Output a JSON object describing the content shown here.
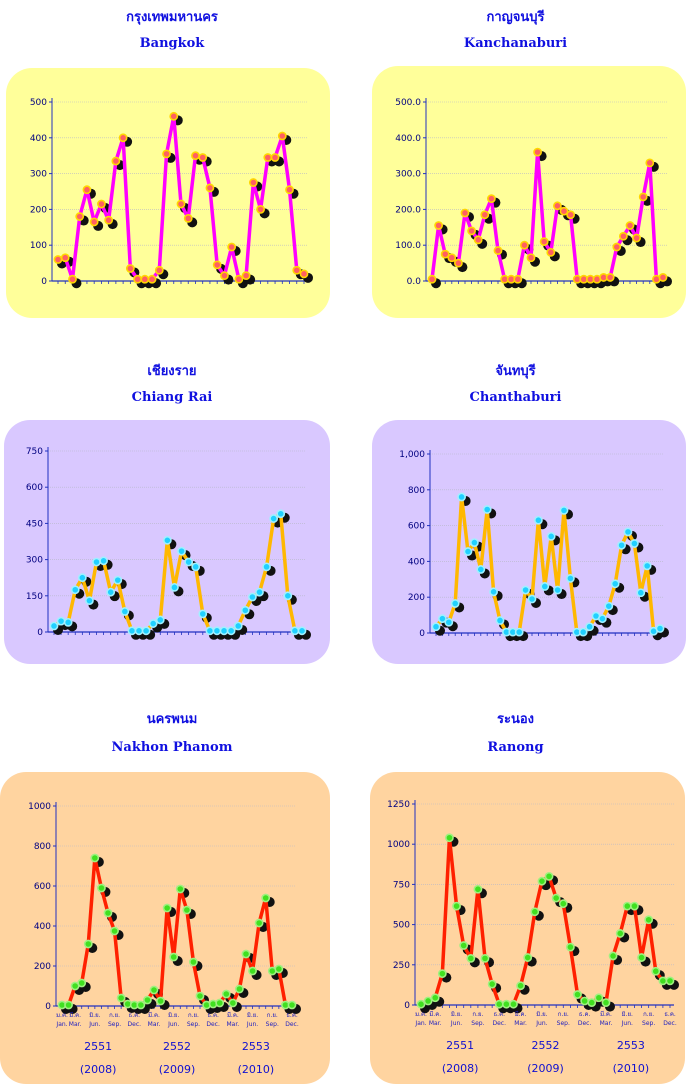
{
  "charts": [
    {
      "title_th": "กรุงเทพมหานคร",
      "title_en": "Bangkok",
      "chart_data": {
        "type": "line",
        "yticks": [
          0,
          100,
          200,
          300,
          400,
          500
        ],
        "ytick_labels": [
          "0",
          "100",
          "200",
          "300",
          "400",
          "500"
        ],
        "ylim": [
          0,
          500
        ],
        "values": [
          60,
          65,
          5,
          180,
          255,
          165,
          215,
          170,
          335,
          400,
          35,
          5,
          5,
          5,
          30,
          355,
          460,
          215,
          175,
          350,
          345,
          260,
          45,
          15,
          95,
          5,
          15,
          275,
          200,
          345,
          345,
          405,
          255,
          30,
          20
        ],
        "line_color": "#ff00ff",
        "marker_fill": "#ff6060",
        "marker_edge": "#ffd700",
        "background": "#ffff9a"
      }
    },
    {
      "title_th": "กาญจนบุรี",
      "title_en": "Kanchanaburi",
      "chart_data": {
        "type": "line",
        "yticks": [
          0,
          100,
          200,
          300,
          400,
          500
        ],
        "ytick_labels": [
          "0.0",
          "100.0",
          "200.0",
          "300.0",
          "400.0",
          "500.0"
        ],
        "ylim": [
          0,
          500
        ],
        "values": [
          5,
          155,
          75,
          65,
          50,
          190,
          140,
          115,
          185,
          230,
          85,
          5,
          5,
          5,
          100,
          65,
          360,
          110,
          80,
          210,
          195,
          185,
          5,
          5,
          5,
          5,
          10,
          10,
          95,
          125,
          155,
          120,
          235,
          330,
          5,
          10
        ],
        "line_color": "#ff00ff",
        "marker_fill": "#ff6060",
        "marker_edge": "#ffd700",
        "background": "#ffff9a"
      }
    },
    {
      "title_th": "เชียงราย",
      "title_en": "Chiang Rai",
      "chart_data": {
        "type": "line",
        "yticks": [
          0,
          150,
          300,
          450,
          600,
          750
        ],
        "ytick_labels": [
          "0",
          "150",
          "300",
          "450",
          "600",
          "750"
        ],
        "ylim": [
          0,
          750
        ],
        "values": [
          25,
          45,
          40,
          175,
          225,
          130,
          290,
          295,
          165,
          215,
          85,
          5,
          5,
          5,
          35,
          50,
          380,
          185,
          335,
          290,
          270,
          75,
          5,
          5,
          5,
          5,
          25,
          90,
          145,
          165,
          270,
          470,
          490,
          150,
          5,
          5
        ],
        "line_color": "#ffb800",
        "marker_fill": "#20d0ff",
        "marker_edge": "#a0f0ff",
        "background": "#d9c8ff"
      }
    },
    {
      "title_th": "จันทบุรี",
      "title_en": "Chanthaburi",
      "chart_data": {
        "type": "line",
        "yticks": [
          0,
          200,
          400,
          600,
          800,
          1000
        ],
        "ytick_labels": [
          "0",
          "200",
          "400",
          "600",
          "800",
          "1,000"
        ],
        "ylim": [
          0,
          1000
        ],
        "values": [
          35,
          80,
          60,
          165,
          760,
          455,
          505,
          355,
          690,
          230,
          70,
          5,
          5,
          5,
          240,
          190,
          630,
          260,
          540,
          240,
          685,
          305,
          5,
          5,
          35,
          95,
          80,
          150,
          275,
          490,
          565,
          500,
          225,
          375,
          10,
          25
        ],
        "line_color": "#ffb800",
        "marker_fill": "#20d0ff",
        "marker_edge": "#a0f0ff",
        "background": "#d9c8ff"
      }
    },
    {
      "title_th": "นครพนม",
      "title_en": "Nakhon Phanom",
      "chart_data": {
        "type": "line",
        "yticks": [
          0,
          200,
          400,
          600,
          800,
          1000
        ],
        "ytick_labels": [
          "0",
          "200",
          "400",
          "600",
          "800",
          "1000"
        ],
        "ylim": [
          0,
          1000
        ],
        "values": [
          5,
          5,
          100,
          115,
          310,
          740,
          590,
          465,
          375,
          40,
          10,
          5,
          5,
          30,
          80,
          25,
          490,
          245,
          585,
          480,
          220,
          50,
          5,
          10,
          15,
          60,
          15,
          85,
          260,
          175,
          415,
          540,
          175,
          185,
          5,
          5
        ],
        "line_color": "#ff2000",
        "marker_fill": "#40e020",
        "marker_edge": "#a0f080",
        "background": "#ffd4a0",
        "month_labels_th": [
          "ม.ค.",
          "มี.ค.",
          "มิ.ย.",
          "ก.ย.",
          "ธ.ค.",
          "มี.ค.",
          "มิ.ย.",
          "ก.ย.",
          "ธ.ค.",
          "มี.ค.",
          "มิ.ย.",
          "ก.ย.",
          "ธ.ค."
        ],
        "month_labels_en": [
          "Jan.",
          "Mar.",
          "Jun.",
          "Sep.",
          "Dec.",
          "Mar.",
          "Jun.",
          "Sep.",
          "Dec.",
          "Mar.",
          "Jun.",
          "Sep.",
          "Dec."
        ],
        "years_th": [
          "2551",
          "2552",
          "2553"
        ],
        "years_en": [
          "(2008)",
          "(2009)",
          "(2010)"
        ]
      }
    },
    {
      "title_th": "ระนอง",
      "title_en": "Ranong",
      "chart_data": {
        "type": "line",
        "yticks": [
          0,
          250,
          500,
          750,
          1000,
          1250
        ],
        "ytick_labels": [
          "0",
          "250",
          "500",
          "750",
          "1000",
          "1250"
        ],
        "ylim": [
          0,
          1250
        ],
        "values": [
          5,
          25,
          45,
          195,
          1040,
          615,
          370,
          290,
          720,
          290,
          130,
          5,
          5,
          5,
          120,
          295,
          580,
          770,
          800,
          665,
          630,
          360,
          65,
          25,
          15,
          45,
          15,
          305,
          445,
          615,
          615,
          295,
          530,
          210,
          150,
          150
        ],
        "line_color": "#ff2000",
        "marker_fill": "#40e020",
        "marker_edge": "#a0f080",
        "background": "#ffd4a0",
        "month_labels_th": [
          "ม.ค.",
          "มี.ค.",
          "มิ.ย.",
          "ก.ย.",
          "ธ.ค.",
          "มี.ค.",
          "มิ.ย.",
          "ก.ย.",
          "ธ.ค.",
          "มี.ค.",
          "มิ.ย.",
          "ก.ย.",
          "ธ.ค."
        ],
        "month_labels_en": [
          "Jan.",
          "Mar.",
          "Jun.",
          "Sep.",
          "Dec.",
          "Mar.",
          "Jun.",
          "Sep.",
          "Dec.",
          "Mar.",
          "Jun.",
          "Sep.",
          "Dec."
        ],
        "years_th": [
          "2551",
          "2552",
          "2553"
        ],
        "years_en": [
          "(2008)",
          "(2009)",
          "(2010)"
        ]
      }
    }
  ]
}
